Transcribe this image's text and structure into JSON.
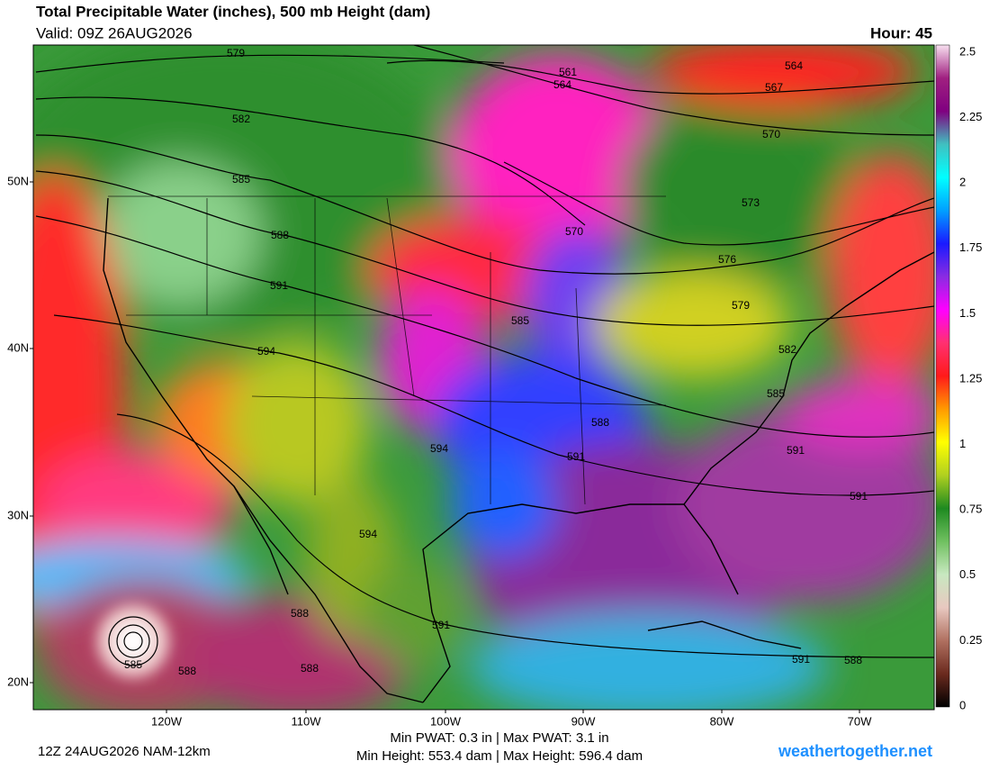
{
  "header": {
    "title": "Total Precipitable Water (inches), 500 mb Height (dam)",
    "valid": "Valid: 09Z 26AUG2026",
    "hour": "Hour: 45"
  },
  "colorbar": {
    "labels": [
      "2.5",
      "2.25",
      "2",
      "1.75",
      "1.5",
      "1.25",
      "1",
      "0.75",
      "0.5",
      "0.25",
      "0"
    ]
  },
  "latitude_labels": [
    "50N",
    "40N",
    "30N",
    "20N"
  ],
  "longitude_labels": [
    "120W",
    "110W",
    "100W",
    "90W",
    "80W",
    "70W"
  ],
  "contour_labels": [
    "579",
    "582",
    "585",
    "588",
    "591",
    "594",
    "561",
    "564",
    "564",
    "567",
    "570",
    "570",
    "573",
    "576",
    "579",
    "582",
    "585",
    "585",
    "588",
    "591",
    "594",
    "591",
    "594",
    "591",
    "588",
    "585",
    "588",
    "588",
    "591",
    "591",
    "588"
  ],
  "footer": {
    "run": "12Z 24AUG2026 NAM-12km",
    "pwat": "Min PWAT:   0.3 in | Max PWAT:   3.1 in",
    "height": "Min Height: 553.4 dam | Max Height: 596.4 dam",
    "site": "weathertogether.net"
  }
}
